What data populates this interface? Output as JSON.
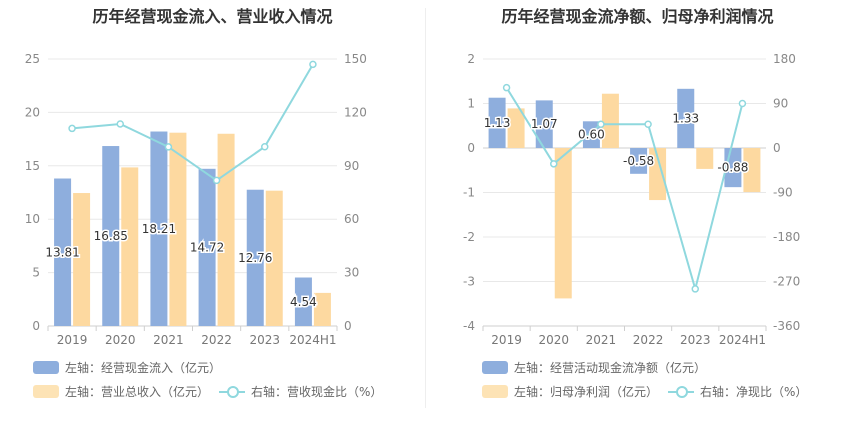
{
  "chart_data": [
    {
      "type": "bar",
      "title": "历年经营现金流入、营业收入情况",
      "categories": [
        "2019",
        "2020",
        "2021",
        "2022",
        "2023",
        "2024H1"
      ],
      "left_axis": {
        "min": 0,
        "max": 25,
        "ticks": [
          "0",
          "5",
          "10",
          "15",
          "20",
          "25"
        ]
      },
      "right_axis": {
        "min": 0,
        "max": 150,
        "ticks": [
          "0",
          "30",
          "60",
          "90",
          "120",
          "150"
        ]
      },
      "series": [
        {
          "name": "左轴：经营现金流入（亿元）",
          "kind": "bar",
          "axis": "left",
          "color": "#8eaedd",
          "values": [
            13.81,
            16.85,
            18.21,
            14.72,
            12.76,
            4.54
          ],
          "labels": [
            "13.81",
            "16.85",
            "18.21",
            "14.72",
            "12.76",
            "4.54"
          ]
        },
        {
          "name": "左轴：营业总收入（亿元）",
          "kind": "bar",
          "axis": "left",
          "color": "#fdd9a0",
          "values": [
            12.45,
            14.85,
            18.1,
            18.0,
            12.67,
            3.1
          ]
        },
        {
          "name": "右轴：营收现金比（%）",
          "kind": "line",
          "axis": "right",
          "color": "#8fd8de",
          "values": [
            111,
            113.5,
            100.6,
            81.8,
            100.7,
            147
          ]
        }
      ],
      "grid": true,
      "legend_position": "bottom-left"
    },
    {
      "type": "bar",
      "title": "历年经营现金流净额、归母净利润情况",
      "categories": [
        "2019",
        "2020",
        "2021",
        "2022",
        "2023",
        "2024H1"
      ],
      "left_axis": {
        "min": -4,
        "max": 2,
        "ticks": [
          "-4",
          "-3",
          "-2",
          "-1",
          "0",
          "1",
          "2"
        ]
      },
      "right_axis": {
        "min": -360,
        "max": 180,
        "ticks": [
          "-360",
          "-270",
          "-180",
          "-90",
          "0",
          "90",
          "180"
        ]
      },
      "series": [
        {
          "name": "左轴：经营活动现金流净额（亿元）",
          "kind": "bar",
          "axis": "left",
          "color": "#8eaedd",
          "values": [
            1.13,
            1.07,
            0.6,
            -0.58,
            1.33,
            -0.88
          ],
          "labels": [
            "1.13",
            "1.07",
            "0.60",
            "-0.58",
            "1.33",
            "-0.88"
          ]
        },
        {
          "name": "左轴：归母净利润（亿元）",
          "kind": "bar",
          "axis": "left",
          "color": "#fdd9a0",
          "values": [
            0.89,
            -3.38,
            1.22,
            -1.17,
            -0.47,
            -0.99
          ]
        },
        {
          "name": "右轴：净现比（%）",
          "kind": "line",
          "axis": "right",
          "color": "#8fd8de",
          "values": [
            122,
            -32,
            48,
            48,
            -285,
            90
          ]
        }
      ],
      "grid": true,
      "legend_position": "bottom-left"
    }
  ]
}
